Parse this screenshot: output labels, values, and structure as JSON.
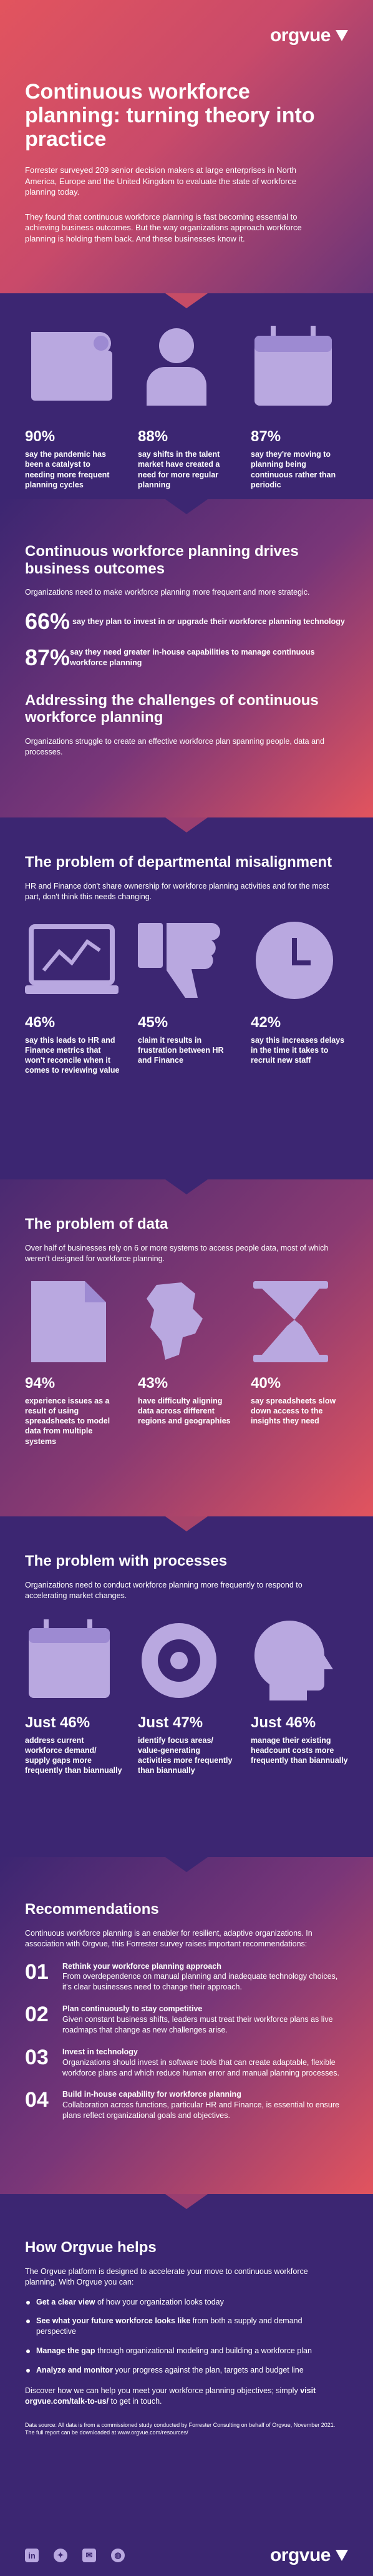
{
  "brand": {
    "logo_text": "orgvue"
  },
  "hero": {
    "title": "Continuous workforce planning: turning theory into practice",
    "p1": "Forrester surveyed 209 senior decision makers at large enterprises in North America, Europe and the United Kingdom to evaluate the state of workforce planning today.",
    "p2": "They found that continuous workforce planning is fast becoming essential to achieving business outcomes. But the way organizations approach workforce planning is holding them back. And these businesses know it."
  },
  "stats": [
    {
      "value": "90%",
      "label": "say the pandemic has been a catalyst to needing more frequent planning cycles",
      "icon": "map-icon"
    },
    {
      "value": "88%",
      "label": "say shifts in the talent market have created a need for more regular planning",
      "icon": "person-icon"
    },
    {
      "value": "87%",
      "label": "say they're moving to planning being continuous rather than periodic",
      "icon": "calendar-icon"
    }
  ],
  "outcomes": {
    "title": "Continuous workforce planning drives business outcomes",
    "intro": "Organizations need to make workforce planning more frequent and more strategic.",
    "rows": [
      {
        "value": "66%",
        "label": "say they plan to invest in or upgrade their workforce planning technology"
      },
      {
        "value": "87%",
        "label": "say they need greater in-house capabilities to manage continuous workforce planning"
      }
    ],
    "challenges_title": "Addressing the challenges of continuous workforce planning",
    "challenges_text": "Organizations struggle to create an effective workforce plan spanning people, data and processes."
  },
  "misalignment": {
    "title": "The problem of departmental misalignment",
    "intro": "HR and Finance don't share ownership for workforce planning activities and for the most part, don't think this needs changing.",
    "stats": [
      {
        "value": "46%",
        "label": "say this leads to HR and Finance metrics that won't reconcile when it comes to reviewing value",
        "icon": "laptop-chart-icon"
      },
      {
        "value": "45%",
        "label": "claim it results in frustration between HR and Finance",
        "icon": "thumbs-down-icon"
      },
      {
        "value": "42%",
        "label": "say this increases delays in the time it takes to recruit new staff",
        "icon": "clock-icon"
      }
    ]
  },
  "data_problem": {
    "title": "The problem of data",
    "intro": "Over half of businesses rely on 6 or more systems to access people data, most of which weren't designed for workforce planning.",
    "stats": [
      {
        "value": "94%",
        "label": "experience issues as a result of using spreadsheets to model data from multiple systems",
        "icon": "document-icon"
      },
      {
        "value": "43%",
        "label": "have difficulty aligning data across different regions and geographies",
        "icon": "map-region-icon"
      },
      {
        "value": "40%",
        "label": "say spreadsheets slow down access to the insights they need",
        "icon": "hourglass-icon"
      }
    ]
  },
  "processes": {
    "title": "The problem with processes",
    "intro": "Organizations need to conduct workforce planning more frequently to respond to accelerating market changes.",
    "stats": [
      {
        "value": "Just 46%",
        "label": "address current workforce demand/ supply gaps more frequently than biannually",
        "icon": "calendar-icon"
      },
      {
        "value": "Just 47%",
        "label": "identify focus areas/ value-generating activities more frequently than biannually",
        "icon": "gauge-icon"
      },
      {
        "value": "Just 46%",
        "label": "manage their existing headcount costs more frequently than biannually",
        "icon": "head-icon"
      }
    ]
  },
  "recommendations": {
    "title": "Recommendations",
    "intro": "Continuous workforce planning is an enabler for resilient, adaptive organizations. In association with Orgvue, this Forrester survey raises important recommendations:",
    "items": [
      {
        "num": "01",
        "title": "Rethink your workforce planning approach",
        "text": "From overdependence on manual planning and inadequate technology choices, it's clear businesses need to change their approach."
      },
      {
        "num": "02",
        "title": "Plan continuously to stay competitive",
        "text": "Given constant business shifts, leaders must treat their workforce plans as live roadmaps that change as new challenges arise."
      },
      {
        "num": "03",
        "title": "Invest in technology",
        "text": "Organizations should invest in software tools that can create adaptable, flexible workforce plans and which reduce human error and manual planning processes."
      },
      {
        "num": "04",
        "title": "Build in-house capability for workforce planning",
        "text": "Collaboration across functions, particular HR and Finance, is essential to ensure plans reflect organizational goals and objectives."
      }
    ]
  },
  "help": {
    "title": "How Orgvue helps",
    "intro": "The Orgvue platform is designed to accelerate your move to continuous workforce planning. With Orgvue you can:",
    "items": [
      {
        "bold": "Get a clear view",
        "rest": " of how your organization looks today"
      },
      {
        "bold": "See what your future workforce looks like",
        "rest": " from both a supply and demand perspective"
      },
      {
        "bold": "Manage the gap",
        "rest": " through organizational modeling and building a workforce plan"
      },
      {
        "bold": "Analyze and monitor",
        "rest": " your progress against the plan, targets and budget line"
      }
    ],
    "cta_pre": "Discover how we can help you meet your workforce planning objectives; simply ",
    "cta_bold": "visit orgvue.com/talk-to-us/",
    "cta_post": " to get in touch.",
    "source": "Data source: All data is from a commissioned study conducted by Forrester Consulting on behalf of Orgvue, November 2021. The full report can be downloaded at www.orgvue.com/resources/"
  },
  "footer": {
    "social": [
      {
        "icon": "linkedin-icon",
        "glyph": "in"
      },
      {
        "icon": "twitter-icon",
        "glyph": "✦"
      },
      {
        "icon": "email-icon",
        "glyph": "✉"
      },
      {
        "icon": "globe-icon",
        "glyph": "◍"
      }
    ]
  },
  "colors": {
    "coral": "#e2545e",
    "purple": "#3c2672",
    "lavender": "#b9a8e0"
  }
}
